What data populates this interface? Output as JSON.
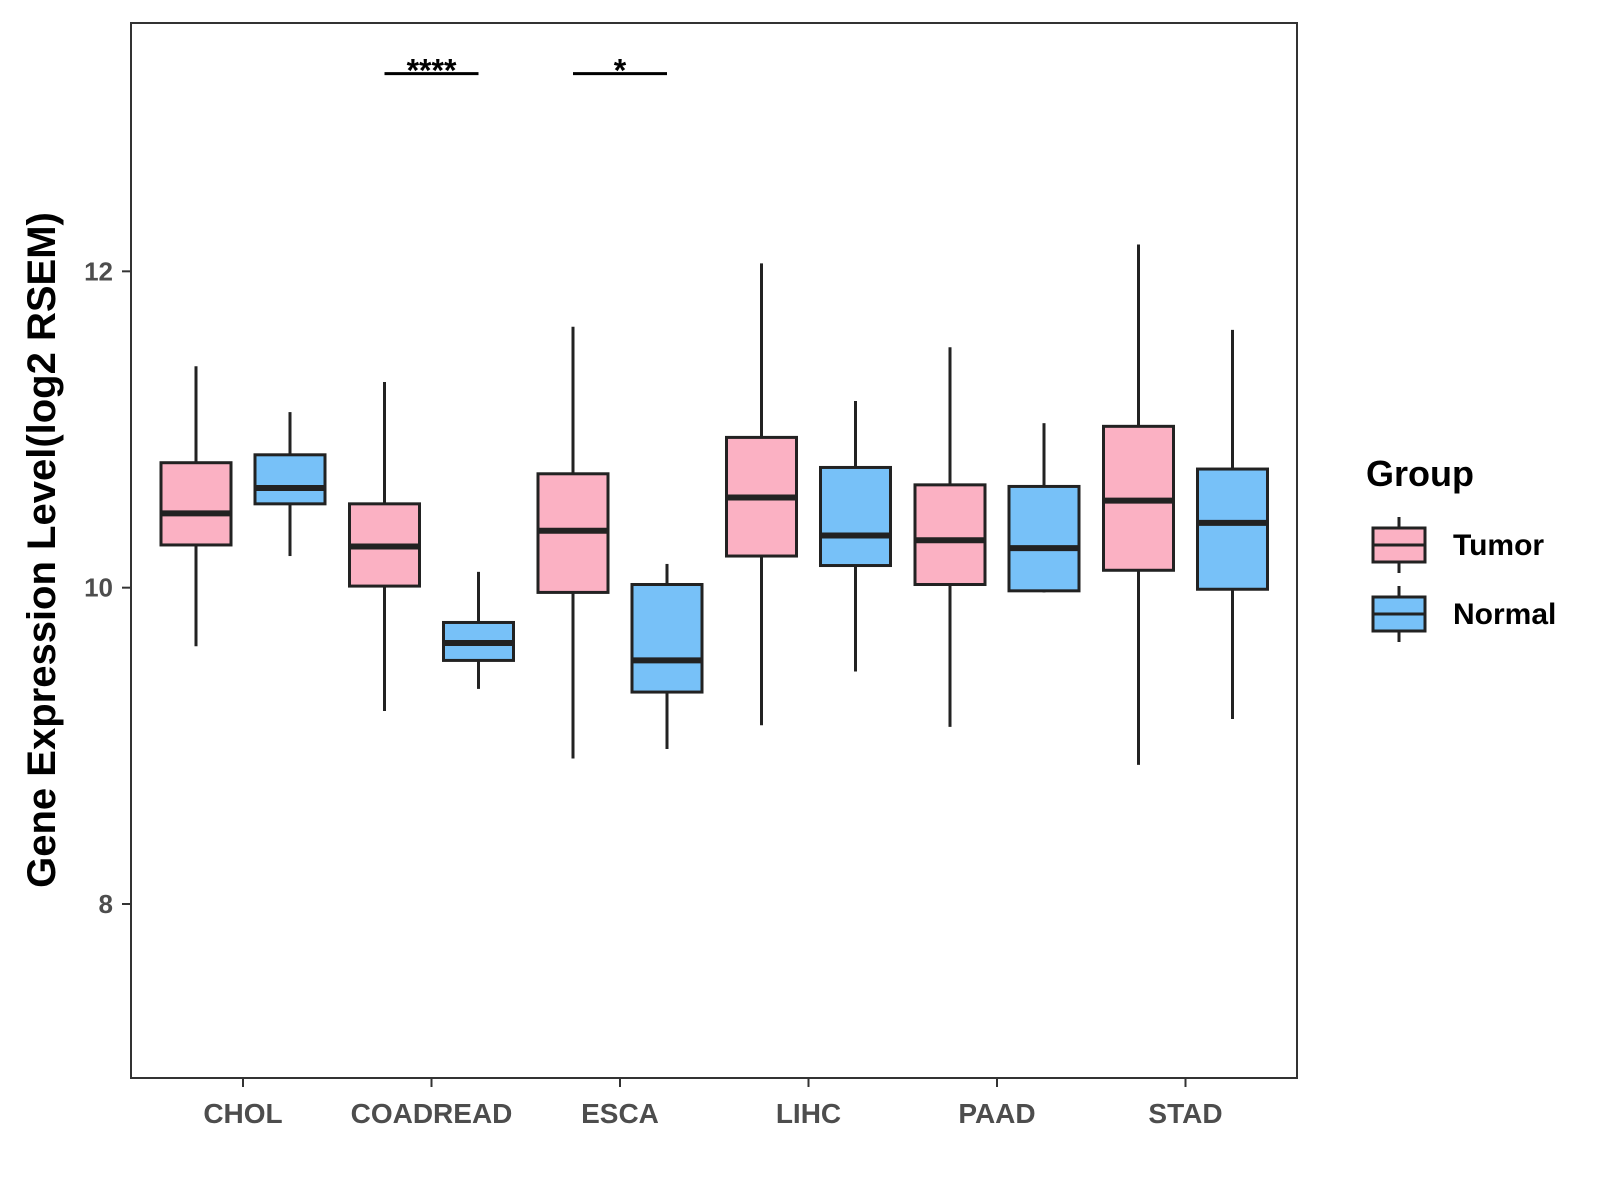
{
  "chart_data": {
    "type": "boxplot",
    "ylabel": "Gene Expression Level(log2 RSEM)",
    "xlabel": "",
    "ylim": [
      6.9,
      13.57
    ],
    "yticks": [
      8,
      10,
      12
    ],
    "categories": [
      "CHOL",
      "COADREAD",
      "ESCA",
      "LIHC",
      "PAAD",
      "STAD"
    ],
    "legend": {
      "title": "Group",
      "position": "right",
      "entries": [
        {
          "name": "Tumor",
          "color": "#fbb1c3"
        },
        {
          "name": "Normal",
          "color": "#77c1f8"
        }
      ]
    },
    "series": [
      {
        "name": "Tumor",
        "color": "#fbb1c3",
        "boxes": [
          {
            "category": "CHOL",
            "min": 9.63,
            "q1": 10.27,
            "median": 10.47,
            "q3": 10.79,
            "max": 11.4
          },
          {
            "category": "COADREAD",
            "min": 9.22,
            "q1": 10.01,
            "median": 10.26,
            "q3": 10.53,
            "max": 11.3
          },
          {
            "category": "ESCA",
            "min": 8.92,
            "q1": 9.97,
            "median": 10.36,
            "q3": 10.72,
            "max": 11.65
          },
          {
            "category": "LIHC",
            "min": 9.13,
            "q1": 10.2,
            "median": 10.57,
            "q3": 10.95,
            "max": 12.05
          },
          {
            "category": "PAAD",
            "min": 9.12,
            "q1": 10.02,
            "median": 10.3,
            "q3": 10.65,
            "max": 11.52
          },
          {
            "category": "STAD",
            "min": 8.88,
            "q1": 10.11,
            "median": 10.55,
            "q3": 11.02,
            "max": 12.17
          }
        ]
      },
      {
        "name": "Normal",
        "color": "#77c1f8",
        "boxes": [
          {
            "category": "CHOL",
            "min": 10.2,
            "q1": 10.53,
            "median": 10.63,
            "q3": 10.84,
            "max": 11.11
          },
          {
            "category": "COADREAD",
            "min": 9.36,
            "q1": 9.54,
            "median": 9.65,
            "q3": 9.78,
            "max": 10.1
          },
          {
            "category": "ESCA",
            "min": 8.98,
            "q1": 9.34,
            "median": 9.54,
            "q3": 10.02,
            "max": 10.15
          },
          {
            "category": "LIHC",
            "min": 9.47,
            "q1": 10.14,
            "median": 10.33,
            "q3": 10.76,
            "max": 11.18
          },
          {
            "category": "PAAD",
            "min": 9.97,
            "q1": 9.98,
            "median": 10.25,
            "q3": 10.64,
            "max": 11.04
          },
          {
            "category": "STAD",
            "min": 9.17,
            "q1": 9.99,
            "median": 10.41,
            "q3": 10.75,
            "max": 11.63
          }
        ]
      }
    ],
    "annotations": [
      {
        "category": "COADREAD",
        "label": "****",
        "y": 13.25
      },
      {
        "category": "ESCA",
        "label": "*",
        "y": 13.25
      }
    ]
  }
}
